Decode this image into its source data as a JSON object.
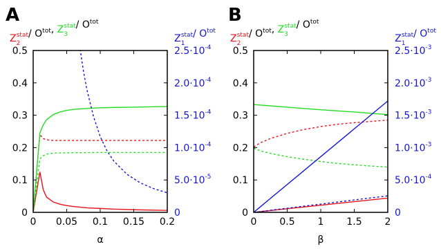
{
  "colors": {
    "red": "#e8131b",
    "green": "#22dd22",
    "blue": "#1414d4",
    "black": "#000000"
  },
  "chart_data": [
    {
      "type": "line",
      "panel": "A",
      "xlabel": "α",
      "ylabel_left": {
        "parts": [
          {
            "base": "Z",
            "sub": "2",
            "sup": "stat",
            "color": "red"
          },
          {
            "text": "/ O",
            "sup": "tot",
            "color": "black"
          },
          {
            "text": ", ",
            "color": "black"
          },
          {
            "base": "Z",
            "sub": "3",
            "sup": "stat",
            "color": "green"
          },
          {
            "text": "/ O",
            "sup": "tot",
            "color": "black"
          }
        ]
      },
      "ylabel_right": {
        "parts": [
          {
            "base": "Z",
            "sub": "1",
            "sup": "stat",
            "color": "blue"
          },
          {
            "text": "/ O",
            "sup": "tot",
            "color": "blue"
          }
        ]
      },
      "xlim": [
        0,
        0.2
      ],
      "ylim": [
        0,
        0.5
      ],
      "y2lim": [
        0,
        0.00025
      ],
      "xticks": [
        "0",
        "0.05",
        "0.1",
        "0.15",
        "0.2"
      ],
      "yticks": [
        "0",
        "0.1",
        "0.2",
        "0.3",
        "0.4",
        "0.5"
      ],
      "y2ticks": [
        {
          "v": 0,
          "mant": "0",
          "exp": ""
        },
        {
          "v": 5e-05,
          "mant": "5.0·10",
          "exp": "-5"
        },
        {
          "v": 0.0001,
          "mant": "1.0·10",
          "exp": "-4"
        },
        {
          "v": 0.00015,
          "mant": "1.5·10",
          "exp": "-4"
        },
        {
          "v": 0.0002,
          "mant": "2.0·10",
          "exp": "-4"
        },
        {
          "v": 0.00025,
          "mant": "2.5·10",
          "exp": "-4"
        }
      ],
      "series": [
        {
          "color": "red",
          "dash": false,
          "axis": "left",
          "x": [
            0,
            0.01,
            0.015,
            0.02,
            0.03,
            0.04,
            0.05,
            0.06,
            0.08,
            0.1,
            0.12,
            0.15,
            0.2
          ],
          "y": [
            0,
            0.125,
            0.07,
            0.047,
            0.032,
            0.025,
            0.021,
            0.018,
            0.014,
            0.012,
            0.01,
            0.008,
            0.006
          ]
        },
        {
          "color": "red",
          "dash": true,
          "axis": "left",
          "x": [
            0,
            0.01,
            0.015,
            0.02,
            0.03,
            0.05,
            0.1,
            0.15,
            0.2
          ],
          "y": [
            0,
            0.24,
            0.228,
            0.224,
            0.222,
            0.222,
            0.222,
            0.222,
            0.222
          ]
        },
        {
          "color": "green",
          "dash": false,
          "axis": "left",
          "x": [
            0,
            0.01,
            0.015,
            0.02,
            0.03,
            0.04,
            0.05,
            0.06,
            0.08,
            0.1,
            0.12,
            0.15,
            0.2
          ],
          "y": [
            0,
            0.245,
            0.27,
            0.286,
            0.302,
            0.31,
            0.315,
            0.318,
            0.321,
            0.323,
            0.324,
            0.325,
            0.327
          ]
        },
        {
          "color": "green",
          "dash": true,
          "axis": "left",
          "x": [
            0,
            0.01,
            0.015,
            0.02,
            0.03,
            0.05,
            0.1,
            0.15,
            0.2
          ],
          "y": [
            0,
            0.165,
            0.175,
            0.18,
            0.183,
            0.184,
            0.185,
            0.185,
            0.185
          ]
        },
        {
          "color": "blue",
          "dash": true,
          "axis": "right",
          "x": [
            0.07,
            0.075,
            0.08,
            0.09,
            0.1,
            0.11,
            0.12,
            0.14,
            0.16,
            0.18,
            0.2
          ],
          "y": [
            0.000252,
            0.000218,
            0.00019,
            0.000148,
            0.000117,
            9.52e-05,
            7.95e-05,
            5.87e-05,
            4.54e-05,
            3.65e-05,
            3.02e-05
          ]
        }
      ]
    },
    {
      "type": "line",
      "panel": "B",
      "xlabel": "β",
      "ylabel_left": {
        "parts": [
          {
            "base": "Z",
            "sub": "2",
            "sup": "stat",
            "color": "red"
          },
          {
            "text": "/ O",
            "sup": "tot",
            "color": "black"
          },
          {
            "text": ", ",
            "color": "black"
          },
          {
            "base": "Z",
            "sub": "3",
            "sup": "stat",
            "color": "green"
          },
          {
            "text": "/ O",
            "sup": "tot",
            "color": "black"
          }
        ]
      },
      "ylabel_right": {
        "parts": [
          {
            "base": "Z",
            "sub": "1",
            "sup": "stat",
            "color": "blue"
          },
          {
            "text": "/ O",
            "sup": "tot",
            "color": "blue"
          }
        ]
      },
      "xlim": [
        0,
        2
      ],
      "ylim": [
        0,
        0.5
      ],
      "y2lim": [
        0,
        0.0025
      ],
      "xticks": [
        "0",
        "0.5",
        "1",
        "1.5",
        "2"
      ],
      "yticks": [
        "0",
        "0.1",
        "0.2",
        "0.3",
        "0.4",
        "0.5"
      ],
      "y2ticks": [
        {
          "v": 0,
          "mant": "0",
          "exp": ""
        },
        {
          "v": 0.0005,
          "mant": "5.0·10",
          "exp": "-4"
        },
        {
          "v": 0.001,
          "mant": "1.0·10",
          "exp": "-3"
        },
        {
          "v": 0.0015,
          "mant": "1.5·10",
          "exp": "-3"
        },
        {
          "v": 0.002,
          "mant": "2.0·10",
          "exp": "-3"
        },
        {
          "v": 0.0025,
          "mant": "2.5·10",
          "exp": "-3"
        }
      ],
      "series": [
        {
          "color": "red",
          "dash": false,
          "axis": "left",
          "x": [
            0,
            0.5,
            1,
            1.5,
            2
          ],
          "y": [
            0,
            0.011,
            0.022,
            0.033,
            0.044
          ]
        },
        {
          "color": "red",
          "dash": true,
          "axis": "left",
          "x": [
            0,
            0.1,
            0.25,
            0.5,
            0.75,
            1,
            1.25,
            1.5,
            1.75,
            2
          ],
          "y": [
            0.202,
            0.215,
            0.228,
            0.244,
            0.256,
            0.265,
            0.272,
            0.277,
            0.281,
            0.285
          ]
        },
        {
          "color": "green",
          "dash": false,
          "axis": "left",
          "x": [
            0,
            0.5,
            1,
            1.5,
            2
          ],
          "y": [
            0.333,
            0.325,
            0.317,
            0.31,
            0.302
          ]
        },
        {
          "color": "green",
          "dash": true,
          "axis": "left",
          "x": [
            0,
            0.1,
            0.25,
            0.5,
            0.75,
            1,
            1.25,
            1.5,
            1.75,
            2
          ],
          "y": [
            0.198,
            0.19,
            0.182,
            0.172,
            0.164,
            0.157,
            0.151,
            0.147,
            0.143,
            0.14
          ]
        },
        {
          "color": "blue",
          "dash": false,
          "axis": "right",
          "x": [
            0,
            2
          ],
          "y": [
            0,
            0.00172
          ]
        },
        {
          "color": "blue",
          "dash": true,
          "axis": "right",
          "x": [
            0,
            2
          ],
          "y": [
            0,
            0.000255
          ]
        }
      ]
    }
  ]
}
